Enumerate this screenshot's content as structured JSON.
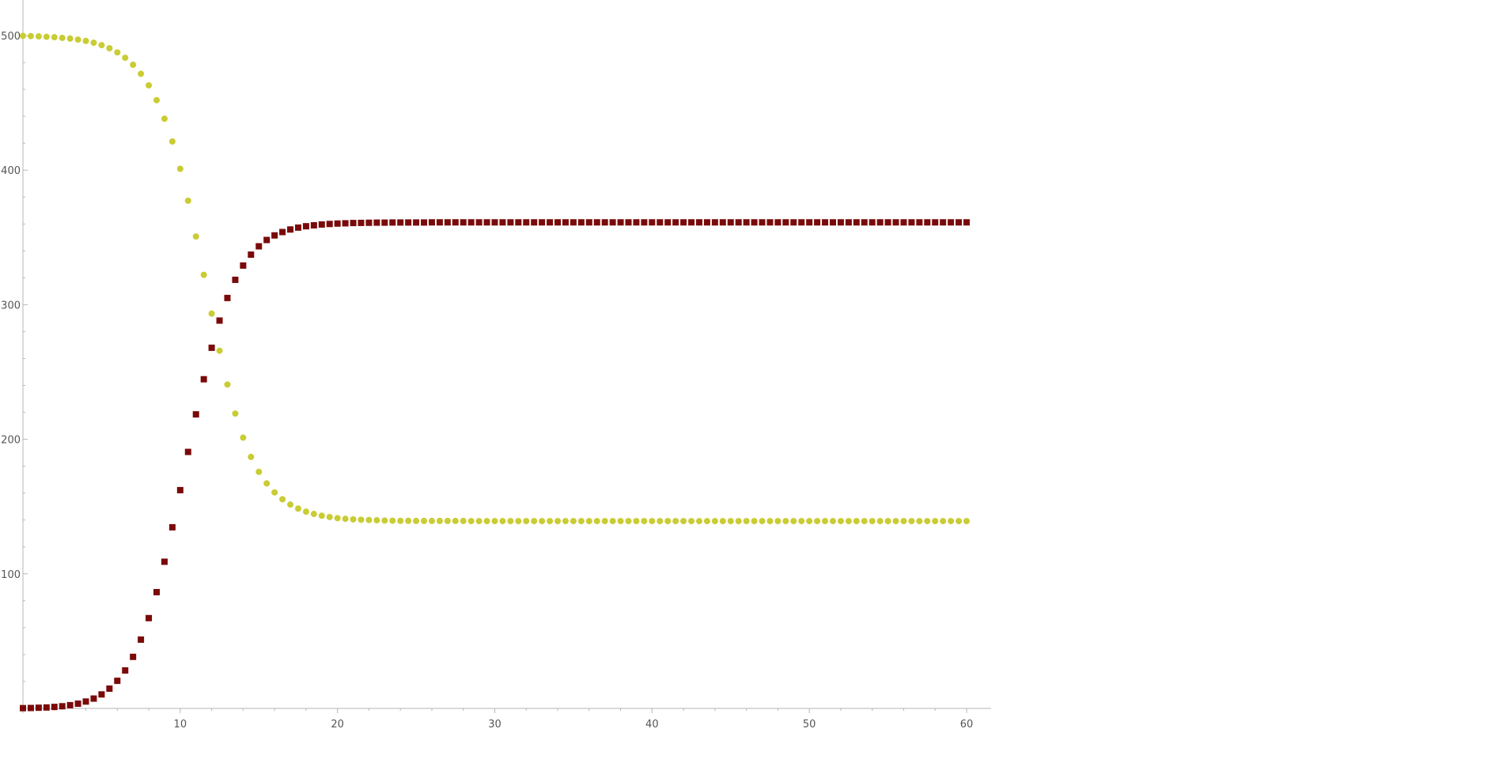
{
  "chart_data": {
    "type": "scatter",
    "title": "",
    "xlabel": "",
    "ylabel": "",
    "xlim": [
      0,
      61.5
    ],
    "ylim": [
      0,
      500
    ],
    "x_ticks": [
      10,
      20,
      30,
      40,
      50,
      60
    ],
    "y_ticks": [
      100,
      200,
      300,
      400,
      500
    ],
    "x_tick_labels": [
      "10",
      "20",
      "30",
      "40",
      "50",
      "60"
    ],
    "y_tick_labels": [
      "100",
      "200",
      "300",
      "400",
      "500"
    ],
    "grid": false,
    "legend": "none",
    "x_start": 0,
    "x_step": 0.5,
    "series": [
      {
        "marker": "circle",
        "color": "#c9cc33",
        "values": [
          499.8,
          499.6,
          499.4,
          499.1,
          498.8,
          498.3,
          497.8,
          497.0,
          496.0,
          494.7,
          492.9,
          490.6,
          487.5,
          483.5,
          478.3,
          471.6,
          463.0,
          452.0,
          438.2,
          421.3,
          401.0,
          377.3,
          350.7,
          322.2,
          293.4,
          265.8,
          240.7,
          219.1,
          201.2,
          186.9,
          175.8,
          167.2,
          160.5,
          155.4,
          151.5,
          148.5,
          146.2,
          144.5,
          143.2,
          142.2,
          141.4,
          140.9,
          140.5,
          140.2,
          140.0,
          139.8,
          139.6,
          139.5,
          139.4,
          139.4,
          139.3,
          139.3,
          139.3,
          139.3,
          139.3,
          139.3,
          139.3,
          139.2,
          139.2,
          139.2,
          139.2,
          139.2,
          139.2,
          139.2,
          139.2,
          139.2,
          139.2,
          139.2,
          139.2,
          139.2,
          139.2,
          139.2,
          139.2,
          139.2,
          139.2,
          139.2,
          139.2,
          139.2,
          139.2,
          139.2,
          139.2,
          139.2,
          139.2,
          139.2,
          139.2,
          139.2,
          139.2,
          139.2,
          139.2,
          139.2,
          139.2,
          139.2,
          139.2,
          139.2,
          139.2,
          139.2,
          139.2,
          139.2,
          139.2,
          139.2,
          139.2,
          139.2,
          139.2,
          139.2,
          139.2,
          139.2,
          139.2,
          139.2,
          139.2,
          139.2,
          139.2,
          139.2,
          139.2,
          139.2,
          139.2,
          139.2,
          139.2,
          139.2,
          139.2,
          139.2,
          139.2
        ]
      },
      {
        "marker": "square",
        "color": "#7a0a0a",
        "values": [
          0.2,
          0.3,
          0.5,
          0.7,
          1.1,
          1.6,
          2.4,
          3.5,
          5.1,
          7.3,
          10.4,
          14.7,
          20.5,
          28.2,
          38.3,
          51.1,
          67.1,
          86.4,
          109.0,
          134.6,
          162.2,
          190.6,
          218.5,
          244.6,
          268.0,
          288.2,
          305.0,
          318.5,
          329.1,
          337.2,
          343.4,
          348.1,
          351.5,
          354.0,
          355.9,
          357.3,
          358.3,
          359.0,
          359.6,
          360.0,
          360.3,
          360.5,
          360.7,
          360.8,
          360.9,
          361.0,
          361.0,
          361.1,
          361.1,
          361.1,
          361.1,
          361.1,
          361.2,
          361.2,
          361.2,
          361.2,
          361.2,
          361.2,
          361.2,
          361.2,
          361.2,
          361.2,
          361.2,
          361.2,
          361.2,
          361.2,
          361.2,
          361.2,
          361.2,
          361.2,
          361.2,
          361.2,
          361.2,
          361.2,
          361.2,
          361.2,
          361.2,
          361.2,
          361.2,
          361.2,
          361.2,
          361.2,
          361.2,
          361.2,
          361.2,
          361.2,
          361.2,
          361.2,
          361.2,
          361.2,
          361.2,
          361.2,
          361.2,
          361.2,
          361.2,
          361.2,
          361.2,
          361.2,
          361.2,
          361.2,
          361.2,
          361.2,
          361.2,
          361.2,
          361.2,
          361.2,
          361.2,
          361.2,
          361.2,
          361.2,
          361.2,
          361.2,
          361.2,
          361.2,
          361.2,
          361.2,
          361.2,
          361.2,
          361.2,
          361.2,
          361.2
        ]
      }
    ]
  }
}
